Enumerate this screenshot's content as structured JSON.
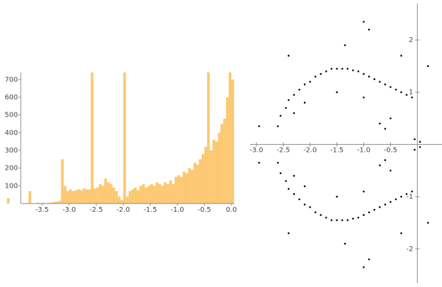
{
  "chart_data": [
    {
      "type": "histogram",
      "color": "#fcc871",
      "bins": [
        -4.15,
        -4.1,
        -4.05,
        -4.0,
        -3.95,
        -3.9,
        -3.85,
        -3.8,
        -3.75,
        -3.7,
        -3.65,
        -3.6,
        -3.55,
        -3.5,
        -3.45,
        -3.4,
        -3.35,
        -3.3,
        -3.25,
        -3.2,
        -3.15,
        -3.1,
        -3.05,
        -3.0,
        -2.95,
        -2.9,
        -2.85,
        -2.8,
        -2.75,
        -2.7,
        -2.65,
        -2.6,
        -2.55,
        -2.5,
        -2.45,
        -2.4,
        -2.35,
        -2.3,
        -2.25,
        -2.2,
        -2.15,
        -2.1,
        -2.05,
        -2.0,
        -1.95,
        -1.9,
        -1.85,
        -1.8,
        -1.75,
        -1.7,
        -1.65,
        -1.6,
        -1.55,
        -1.5,
        -1.45,
        -1.4,
        -1.35,
        -1.3,
        -1.25,
        -1.2,
        -1.15,
        -1.1,
        -1.05,
        -1.0,
        -0.95,
        -0.9,
        -0.85,
        -0.8,
        -0.75,
        -0.7,
        -0.65,
        -0.6,
        -0.55,
        -0.5,
        -0.45,
        -0.4,
        -0.35,
        -0.3,
        -0.25,
        -0.2,
        -0.15,
        -0.1,
        -0.05,
        0.0,
        0.05
      ],
      "counts": [
        30,
        0,
        0,
        0,
        0,
        0,
        0,
        0,
        70,
        0,
        0,
        5,
        0,
        5,
        0,
        5,
        5,
        10,
        10,
        15,
        250,
        100,
        70,
        80,
        70,
        75,
        80,
        75,
        85,
        80,
        80,
        740,
        85,
        90,
        110,
        100,
        140,
        120,
        110,
        90,
        70,
        40,
        20,
        740,
        40,
        70,
        80,
        90,
        75,
        100,
        110,
        90,
        100,
        110,
        100,
        120,
        110,
        100,
        120,
        110,
        130,
        110,
        150,
        160,
        150,
        180,
        170,
        200,
        190,
        230,
        220,
        250,
        280,
        320,
        740,
        300,
        360,
        350,
        400,
        450,
        480,
        600,
        740,
        700
      ],
      "xlim": [
        -4.15,
        0.05
      ],
      "ylim": [
        0,
        740
      ],
      "xticks": [
        {
          "value": -3.5,
          "label": "-3.5"
        },
        {
          "value": -3,
          "label": "-3.0"
        },
        {
          "value": -2.5,
          "label": "-2.5"
        },
        {
          "value": -2,
          "label": "-2.0"
        },
        {
          "value": -1.5,
          "label": "-1.5"
        },
        {
          "value": -1,
          "label": "-1.0"
        },
        {
          "value": -0.5,
          "label": "-0.5"
        },
        {
          "value": 0,
          "label": "0.0"
        }
      ],
      "yticks": [
        100,
        200,
        300,
        400,
        500,
        600,
        700
      ]
    },
    {
      "type": "scatter",
      "color": "#000000",
      "x": [
        -2.6,
        -2.55,
        -2.45,
        -2.4,
        -2.3,
        -2.2,
        -2.1,
        -2.0,
        -1.9,
        -1.8,
        -1.7,
        -1.6,
        -1.5,
        -1.4,
        -1.3,
        -1.2,
        -1.1,
        -1.0,
        -0.9,
        -0.8,
        -0.7,
        -0.6,
        -0.5,
        -0.4,
        -0.3,
        -0.2,
        -0.1,
        -2.3,
        -2.1,
        -1.5,
        -1.0,
        -0.6,
        -0.5,
        -0.05,
        0.05,
        -0.9,
        -1.0,
        -1.35,
        -0.3,
        -2.4,
        -2.95,
        0.2,
        -0.7,
        -2.6,
        -2.55,
        -2.45,
        -2.4,
        -2.3,
        -2.2,
        -2.1,
        -2.0,
        -1.9,
        -1.8,
        -1.7,
        -1.6,
        -1.5,
        -1.4,
        -1.3,
        -1.2,
        -1.1,
        -1.0,
        -0.9,
        -0.8,
        -0.7,
        -0.6,
        -0.5,
        -0.4,
        -0.3,
        -0.2,
        -0.1,
        -2.3,
        -2.1,
        -1.5,
        -1.0,
        -0.6,
        -0.5,
        -0.05,
        0.05,
        -0.9,
        -1.0,
        -1.35,
        -0.3,
        -2.4,
        -2.95,
        0.2,
        -0.7
      ],
      "y": [
        0.35,
        0.55,
        0.7,
        0.85,
        0.95,
        1.05,
        1.15,
        1.2,
        1.3,
        1.35,
        1.4,
        1.45,
        1.45,
        1.45,
        1.45,
        1.42,
        1.4,
        1.35,
        1.3,
        1.25,
        1.2,
        1.15,
        1.1,
        1.05,
        1.0,
        0.95,
        0.9,
        0.6,
        0.8,
        1.0,
        0.9,
        0.3,
        0.5,
        0.1,
        0.05,
        2.2,
        2.35,
        1.9,
        1.7,
        1.7,
        0.35,
        1.5,
        0.4,
        -0.35,
        -0.55,
        -0.7,
        -0.85,
        -0.95,
        -1.05,
        -1.15,
        -1.2,
        -1.3,
        -1.35,
        -1.4,
        -1.45,
        -1.45,
        -1.45,
        -1.45,
        -1.42,
        -1.4,
        -1.35,
        -1.3,
        -1.25,
        -1.2,
        -1.15,
        -1.1,
        -1.05,
        -1.0,
        -0.95,
        -0.9,
        -0.6,
        -0.8,
        -1.0,
        -0.9,
        -0.3,
        -0.5,
        -0.1,
        -0.05,
        -2.2,
        -2.35,
        -1.9,
        -1.7,
        -1.7,
        -0.35,
        -1.5,
        -0.4
      ],
      "xlim": [
        -3.12,
        0.46
      ],
      "ylim": [
        -2.65,
        2.7
      ],
      "xticks": [
        {
          "value": -3,
          "label": "-3.0"
        },
        {
          "value": -2.5,
          "label": "-2.5"
        },
        {
          "value": -2,
          "label": "-2.0"
        },
        {
          "value": -1.5,
          "label": "-1.5"
        },
        {
          "value": -1,
          "label": "-1.0"
        },
        {
          "value": -0.5,
          "label": "-0.5"
        }
      ],
      "yticks": [
        -2,
        -1,
        1,
        2
      ]
    }
  ]
}
